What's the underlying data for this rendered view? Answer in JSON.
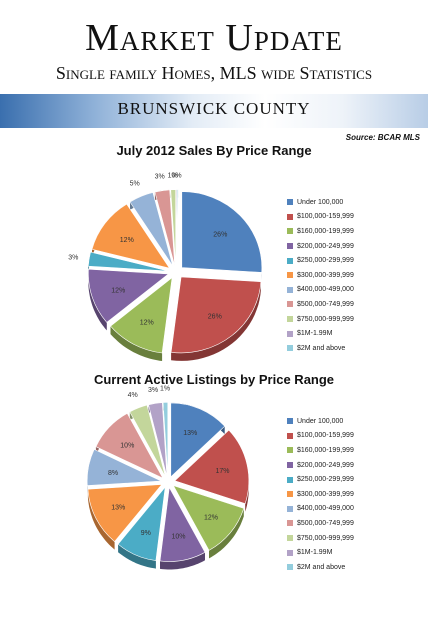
{
  "header": {
    "title": "Market Update",
    "subtitle": "Single family Homes, MLS wide Statistics",
    "county": "BRUNSWICK COUNTY",
    "source": "Source: BCAR MLS"
  },
  "colors": [
    "#4f81bd",
    "#c0504d",
    "#9bbb59",
    "#8064a2",
    "#4bacc6",
    "#f79646",
    "#95b3d7",
    "#d99694",
    "#c3d69b",
    "#b2a2c7",
    "#93cddd"
  ],
  "chart_data": [
    {
      "type": "pie",
      "title": "July 2012 Sales By Price Range",
      "categories": [
        "Under 100,000",
        "$100,000-159,999",
        "$160,000-199,999",
        "$200,000-249,999",
        "$250,000-299,999",
        "$300,000-399,999",
        "$400,000-499,000",
        "$500,000-749,999",
        "$750,000-999,999",
        "$1M-1.99M",
        "$2M and above"
      ],
      "values": [
        26,
        26,
        12,
        12,
        3,
        12,
        5,
        3,
        1,
        0,
        0
      ],
      "labels": [
        "26%",
        "26%",
        "12%",
        "12%",
        "3%",
        "12%",
        "5%",
        "3%",
        "1%",
        "0%",
        ""
      ],
      "legend_position": "right",
      "exploded": true
    },
    {
      "type": "pie",
      "title": "Current Active Listings by Price Range",
      "categories": [
        "Under 100,000",
        "$100,000-159,999",
        "$160,000-199,999",
        "$200,000-249,999",
        "$250,000-299,999",
        "$300,000-399,999",
        "$400,000-499,000",
        "$500,000-749,999",
        "$750,000-999,999",
        "$1M-1.99M",
        "$2M and above"
      ],
      "values": [
        13,
        17,
        12,
        10,
        9,
        13,
        8,
        10,
        4,
        3,
        1
      ],
      "labels": [
        "13%",
        "17%",
        "12%",
        "10%",
        "9%",
        "13%",
        "8%",
        "10%",
        "4%",
        "3%",
        "1%"
      ],
      "legend_position": "right",
      "exploded": true
    }
  ]
}
